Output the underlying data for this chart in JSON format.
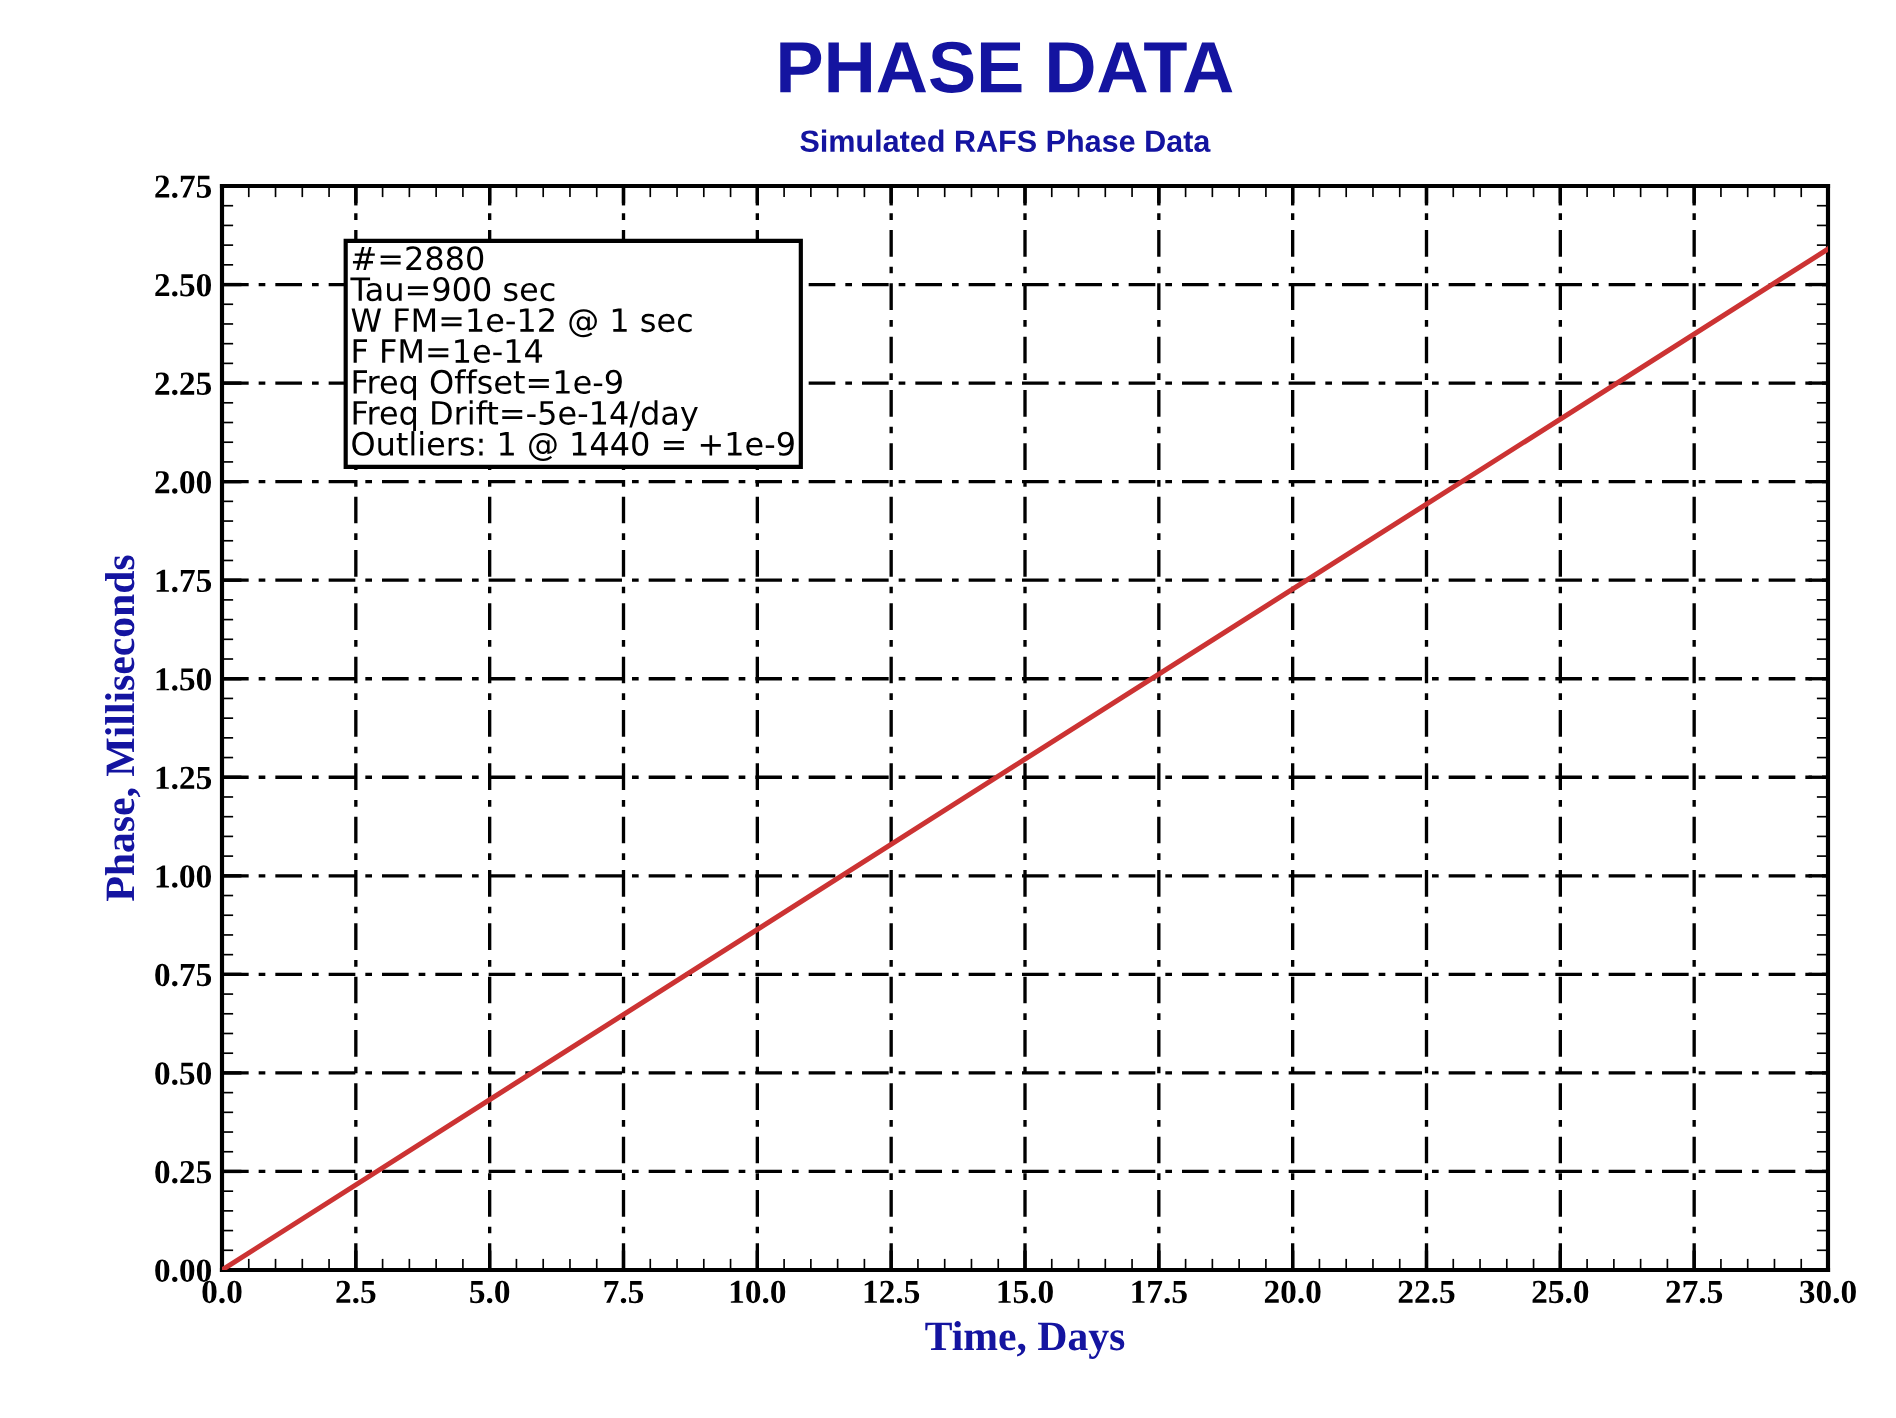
{
  "chart_data": {
    "type": "line",
    "title": "PHASE DATA",
    "subtitle": "Simulated RAFS Phase Data",
    "xlabel": "Time, Days",
    "ylabel": "Phase, Milliseconds",
    "x": [
      0,
      15,
      30
    ],
    "series": [
      {
        "color": "#cc3333",
        "values": [
          0,
          1.296,
          2.59
        ]
      }
    ],
    "xlim": [
      0,
      30
    ],
    "xticks": [
      {
        "value": 0,
        "label": "0.0"
      },
      2.5,
      {
        "value": 5,
        "label": "5.0"
      },
      7.5,
      {
        "value": 10,
        "label": "10.0"
      },
      12.5,
      {
        "value": 15,
        "label": "15.0"
      },
      17.5,
      {
        "value": 20,
        "label": "20.0"
      },
      22.5,
      {
        "value": 25,
        "label": "25.0"
      },
      27.5,
      {
        "value": 30,
        "label": "30.0"
      }
    ],
    "ylim": [
      0,
      2.75
    ],
    "yticks": [
      {
        "value": 0,
        "label": "0.00"
      },
      0.25,
      {
        "value": 0.5,
        "label": "0.50"
      },
      0.75,
      {
        "value": 1,
        "label": "1.00"
      },
      1.25,
      {
        "value": 1.5,
        "label": "1.50"
      },
      1.75,
      {
        "value": 2,
        "label": "2.00"
      },
      2.25,
      {
        "value": 2.5,
        "label": "2.50"
      },
      2.75
    ],
    "grid": true,
    "line_style": "solid",
    "marker": "none",
    "annotations": [
      "#=2880\nTau=900 sec\nW FM=1e-12 @ 1 sec\nF FM=1e-14\nFreq Offset=1e-9\nFreq Drift=-5e-14/day\nOutliers: 1 @ 1440 = +1e-9"
    ]
  }
}
